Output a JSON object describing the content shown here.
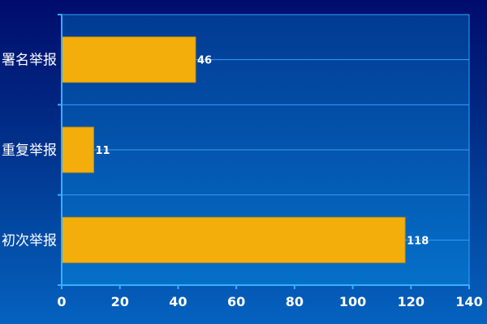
{
  "chart_data": {
    "type": "bar",
    "orientation": "horizontal",
    "categories": [
      "署名举报",
      "重复举报",
      "初次举报"
    ],
    "values": [
      46,
      11,
      118
    ],
    "data_labels": [
      "46",
      "11",
      "118"
    ],
    "xlim": [
      0,
      140
    ],
    "x_ticks": [
      "0",
      "20",
      "40",
      "60",
      "80",
      "100",
      "120",
      "140"
    ],
    "title": "",
    "xlabel": "",
    "ylabel": "",
    "grid": true,
    "legend": "none",
    "colors": {
      "bar": "#f3ae0c",
      "bar_edge": "#c98f00",
      "plot_area_top": "#023a92",
      "plot_area_bottom": "#0570c9",
      "gridline": "#2fa0ff",
      "axis": "#35b0ff",
      "label_text": "#ffffff"
    }
  }
}
